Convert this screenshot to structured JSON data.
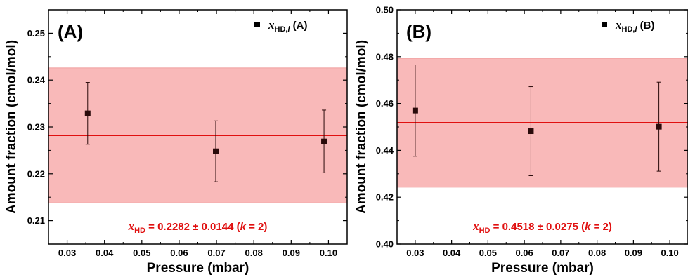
{
  "chart_data": [
    {
      "type": "scatter",
      "panel_label": "(A)",
      "xlabel": "Pressure (mbar)",
      "ylabel": "Amount fraction (cmol/mol)",
      "xlim": [
        0.025,
        0.105
      ],
      "ylim": [
        0.205,
        0.255
      ],
      "xticks": [
        "0.03",
        "0.04",
        "0.05",
        "0.06",
        "0.07",
        "0.08",
        "0.09",
        "0.10"
      ],
      "yticks": [
        "0.21",
        "0.22",
        "0.23",
        "0.24",
        "0.25"
      ],
      "legend": {
        "symbol_prefix": "x",
        "subscript": "HD,",
        "subscript_italic": "i",
        "suffix": " (A)",
        "position": "top-right"
      },
      "series": [
        {
          "marker": "square",
          "color": "#2a0a0a",
          "x": [
            0.0355,
            0.0698,
            0.0988
          ],
          "y": [
            0.2329,
            0.2248,
            0.2269
          ],
          "yerr": [
            0.0066,
            0.0065,
            0.0067
          ]
        }
      ],
      "mean": {
        "value": 0.2282,
        "uncertainty": 0.0144,
        "line_color": "#e01010",
        "band_color": "#f9b9b9"
      },
      "result_text": {
        "symbol": "x",
        "sub": "HD",
        "value": " = 0.2282 ± 0.0144 (",
        "k": "k",
        "k_tail": " = 2)"
      }
    },
    {
      "type": "scatter",
      "panel_label": "(B)",
      "xlabel": "Pressure (mbar)",
      "ylabel": "Amount fraction (cmol/mol)",
      "xlim": [
        0.025,
        0.105
      ],
      "ylim": [
        0.4,
        0.5
      ],
      "xticks": [
        "0.03",
        "0.04",
        "0.05",
        "0.06",
        "0.07",
        "0.08",
        "0.09",
        "0.10"
      ],
      "yticks": [
        "0.40",
        "0.42",
        "0.44",
        "0.46",
        "0.48",
        "0.50"
      ],
      "legend": {
        "symbol_prefix": "x",
        "subscript": "HD,",
        "subscript_italic": "i",
        "suffix": " (B)",
        "position": "top-right"
      },
      "series": [
        {
          "marker": "square",
          "color": "#2a0a0a",
          "x": [
            0.03,
            0.0618,
            0.097
          ],
          "y": [
            0.457,
            0.4482,
            0.4501
          ],
          "yerr": [
            0.0195,
            0.019,
            0.019
          ]
        }
      ],
      "mean": {
        "value": 0.4518,
        "uncertainty": 0.0275,
        "line_color": "#e01010",
        "band_color": "#f9b9b9"
      },
      "result_text": {
        "symbol": "x",
        "sub": "HD",
        "value": " = 0.4518 ± 0.0275 (",
        "k": "k",
        "k_tail": " = 2)"
      }
    }
  ]
}
